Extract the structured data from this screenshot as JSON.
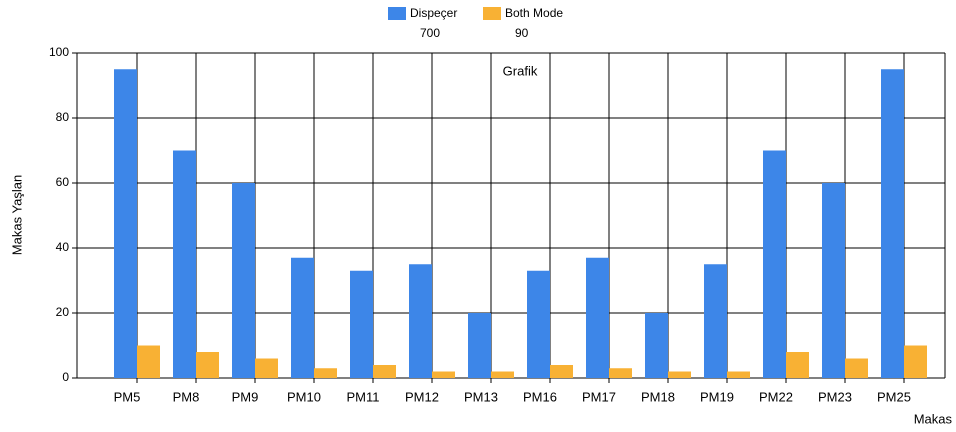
{
  "chart_data": {
    "type": "bar",
    "title": "Grafik",
    "x_label": "Makas",
    "y_label": "Makas Yaşlan",
    "categories": [
      "PM5",
      "PM8",
      "PM9",
      "PM10",
      "PM11",
      "PM12",
      "PM13",
      "PM16",
      "PM17",
      "PM18",
      "PM19",
      "PM22",
      "PM23",
      "PM25"
    ],
    "series": [
      {
        "name": "Dispeçer",
        "color": "#3d86e8",
        "legend_value": 700,
        "values": [
          95,
          70,
          60,
          37,
          33,
          35,
          20,
          33,
          37,
          20,
          35,
          70,
          60,
          95
        ]
      },
      {
        "name": "Both Mode",
        "color": "#f8b134",
        "legend_value": 90,
        "values": [
          10,
          8,
          6,
          3,
          4,
          2,
          2,
          4,
          3,
          2,
          2,
          8,
          6,
          10
        ]
      }
    ],
    "ylim": [
      0,
      100
    ],
    "yticks": [
      0,
      20,
      40,
      60,
      80,
      100
    ],
    "grid": true,
    "legend": "top"
  }
}
